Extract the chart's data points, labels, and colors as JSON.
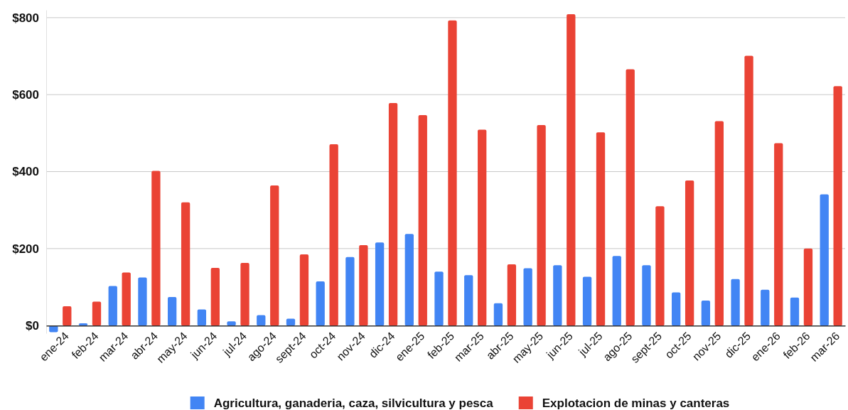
{
  "chart_data": {
    "type": "bar",
    "categories": [
      "ene-24",
      "feb-24",
      "mar-24",
      "abr-24",
      "may-24",
      "jun-24",
      "jul-24",
      "ago-24",
      "sept-24",
      "oct-24",
      "nov-24",
      "dic-24",
      "ene-25",
      "feb-25",
      "mar-25",
      "abr-25",
      "may-25",
      "jun-25",
      "jul-25",
      "ago-25",
      "sept-25",
      "oct-25",
      "nov-25",
      "dic-25",
      "ene-26",
      "feb-26",
      "mar-26"
    ],
    "series": [
      {
        "name": "Agricultura, ganaderia, caza, silvicultura y pesca",
        "color": "#4285f4",
        "values": [
          -17,
          6,
          103,
          125,
          74,
          42,
          11,
          27,
          18,
          115,
          178,
          216,
          238,
          140,
          131,
          58,
          149,
          157,
          127,
          181,
          157,
          86,
          65,
          121,
          93,
          73,
          341
        ]
      },
      {
        "name": "Explotacion de minas y canteras",
        "color": "#ea4335",
        "values": [
          50,
          62,
          138,
          402,
          320,
          150,
          163,
          364,
          185,
          471,
          209,
          578,
          547,
          793,
          509,
          159,
          521,
          809,
          502,
          666,
          310,
          377,
          531,
          701,
          474,
          200,
          622
        ]
      }
    ],
    "ylim": [
      -20,
      820
    ],
    "yticks": [
      {
        "value": 0,
        "label": "$0"
      },
      {
        "value": 200,
        "label": "$200"
      },
      {
        "value": 400,
        "label": "$400"
      },
      {
        "value": 600,
        "label": "$600"
      },
      {
        "value": 800,
        "label": "$800"
      }
    ],
    "grid": "y",
    "legend": "bottom"
  }
}
